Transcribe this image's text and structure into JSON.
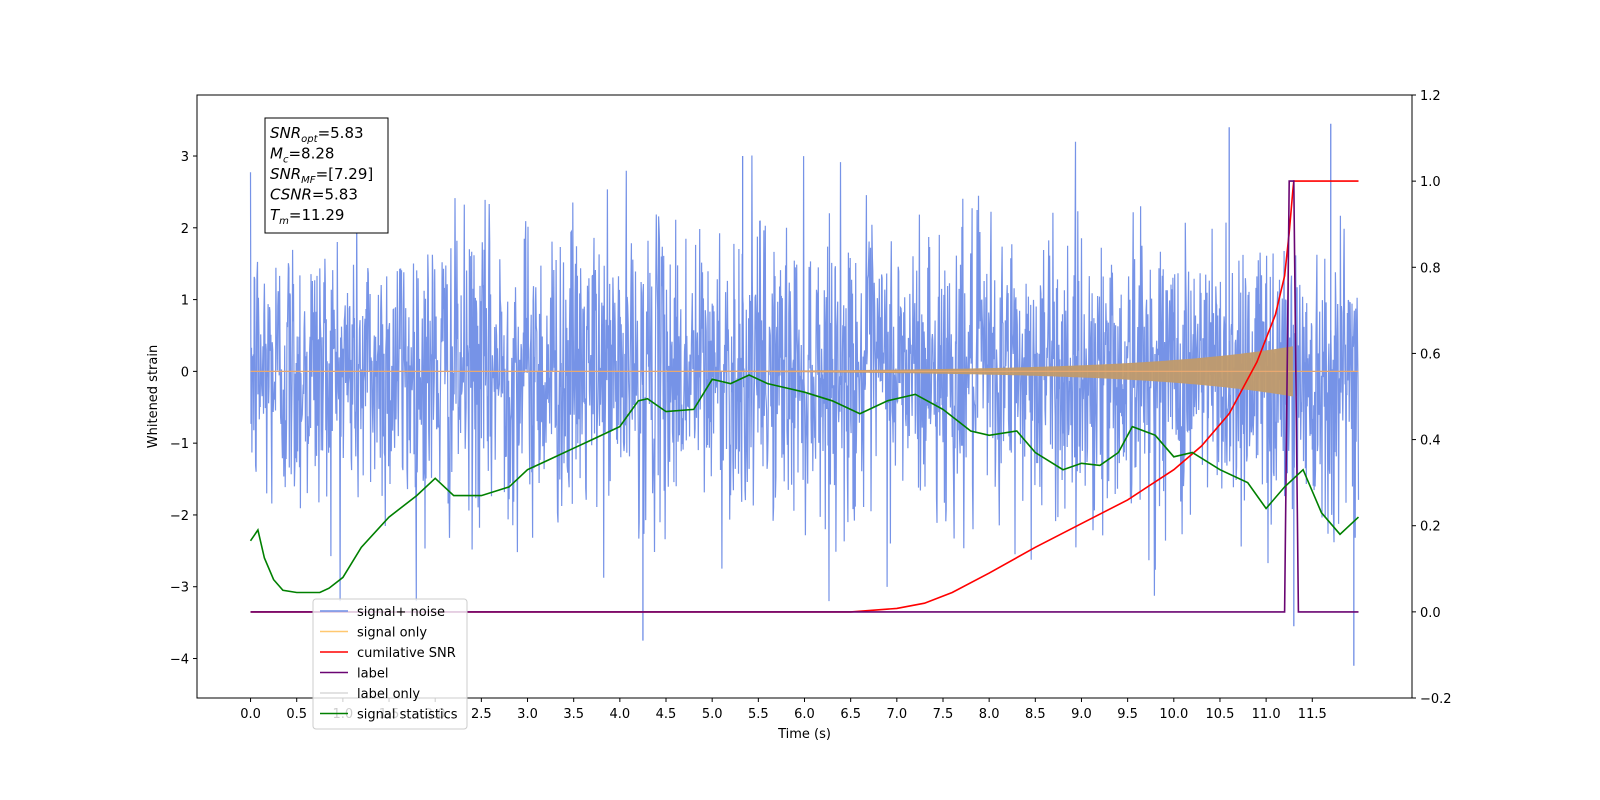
{
  "chart_data": {
    "type": "line",
    "title": "",
    "xlabel": "Time (s)",
    "ylabel": "Whitened strain",
    "xlim": [
      -0.58,
      12.58
    ],
    "ylim": [
      -4.55,
      3.85
    ],
    "y2lim": [
      -0.2,
      1.2
    ],
    "xticks": [
      "0.0",
      "0.5",
      "1.0",
      "1.5",
      "2.0",
      "2.5",
      "3.0",
      "3.5",
      "4.0",
      "4.5",
      "5.0",
      "5.5",
      "6.0",
      "6.5",
      "7.0",
      "7.5",
      "8.0",
      "8.5",
      "9.0",
      "9.5",
      "10.0",
      "10.5",
      "11.0",
      "11.5"
    ],
    "yticks": [
      "−4",
      "−3",
      "−2",
      "−1",
      "0",
      "1",
      "2",
      "3"
    ],
    "y2ticks": [
      "−0.2",
      "0.0",
      "0.2",
      "0.4",
      "0.6",
      "0.8",
      "1.0",
      "1.2"
    ],
    "grid": false,
    "legend_position": "lower-left",
    "series": [
      {
        "name": "signal+ noise",
        "axis": "left",
        "color": "#6f8de6",
        "style": "noise",
        "x_range": [
          0.0,
          12.0
        ],
        "amplitude_sigma": 1.0,
        "peaks": [
          [
            4.25,
            -3.75
          ],
          [
            11.7,
            3.45
          ],
          [
            11.95,
            -4.1
          ],
          [
            10.6,
            3.4
          ],
          [
            5.33,
            3.0
          ],
          [
            11.3,
            -3.55
          ]
        ]
      },
      {
        "name": "signal only",
        "axis": "left",
        "color": "#f5a623",
        "style": "chirp",
        "x_range": [
          0.0,
          12.0
        ],
        "merger_time": 11.29,
        "final_amplitude": 0.35
      },
      {
        "name": "cumilative SNR",
        "axis": "right",
        "x": [
          0.0,
          6.0,
          6.5,
          7.0,
          7.3,
          7.6,
          8.0,
          8.5,
          9.0,
          9.5,
          10.0,
          10.3,
          10.6,
          10.9,
          11.1,
          11.2,
          11.25,
          11.29,
          11.3,
          11.5,
          11.7,
          12.0
        ],
        "values": [
          0.0,
          0.0,
          0.0,
          0.008,
          0.02,
          0.045,
          0.09,
          0.15,
          0.205,
          0.26,
          0.33,
          0.385,
          0.46,
          0.58,
          0.69,
          0.78,
          0.88,
          0.98,
          1.0,
          1.0,
          1.0,
          1.0
        ],
        "color": "#ff0000"
      },
      {
        "name": "label",
        "axis": "right",
        "x": [
          0.0,
          11.2,
          11.25,
          11.3,
          11.35,
          12.0
        ],
        "values": [
          0.0,
          0.0,
          1.0,
          1.0,
          0.0,
          0.0
        ],
        "color": "#6a0572"
      },
      {
        "name": "label only",
        "axis": "right",
        "hidden": true,
        "color": "#cccccc"
      },
      {
        "name": "signal statistics",
        "axis": "right",
        "x": [
          0.0,
          0.08,
          0.15,
          0.25,
          0.35,
          0.5,
          0.75,
          0.85,
          1.0,
          1.2,
          1.5,
          1.8,
          2.0,
          2.2,
          2.5,
          2.8,
          3.0,
          3.2,
          3.5,
          3.7,
          4.0,
          4.2,
          4.3,
          4.5,
          4.8,
          5.0,
          5.2,
          5.4,
          5.6,
          5.8,
          6.0,
          6.3,
          6.6,
          6.9,
          7.2,
          7.5,
          7.8,
          8.0,
          8.3,
          8.5,
          8.8,
          9.0,
          9.2,
          9.4,
          9.55,
          9.8,
          10.0,
          10.2,
          10.5,
          10.8,
          11.0,
          11.2,
          11.4,
          11.6,
          11.8,
          12.0
        ],
        "values": [
          0.165,
          0.19,
          0.125,
          0.075,
          0.05,
          0.045,
          0.045,
          0.055,
          0.08,
          0.15,
          0.22,
          0.27,
          0.31,
          0.27,
          0.27,
          0.29,
          0.33,
          0.35,
          0.38,
          0.4,
          0.43,
          0.49,
          0.495,
          0.465,
          0.47,
          0.54,
          0.53,
          0.55,
          0.53,
          0.52,
          0.51,
          0.49,
          0.46,
          0.49,
          0.505,
          0.47,
          0.42,
          0.41,
          0.42,
          0.37,
          0.33,
          0.345,
          0.34,
          0.37,
          0.43,
          0.41,
          0.36,
          0.37,
          0.33,
          0.3,
          0.24,
          0.29,
          0.33,
          0.23,
          0.18,
          0.22
        ],
        "color": "#008000"
      }
    ]
  },
  "info_box": {
    "lines": [
      {
        "symbol": "SNR",
        "sub": "opt",
        "value": "=5.83"
      },
      {
        "symbol": "M",
        "sub": "c",
        "value": "=8.28"
      },
      {
        "symbol": "SNR",
        "sub": "MF",
        "value": "=[7.29]"
      },
      {
        "symbol": "CSNR",
        "sub": "",
        "value": "=5.83"
      },
      {
        "symbol": "T",
        "sub": "m",
        "value": "=11.29"
      }
    ]
  },
  "legend": {
    "entries": [
      {
        "label": "signal+ noise",
        "color": "#6f8de6",
        "faded": false
      },
      {
        "label": "signal only",
        "color": "#ffc870",
        "faded": false
      },
      {
        "label": "cumilative SNR",
        "color": "#ff0000",
        "faded": false
      },
      {
        "label": "label",
        "color": "#6a0572",
        "faded": false
      },
      {
        "label": "label only",
        "color": "#d8d8d8",
        "faded": true
      },
      {
        "label": "signal statistics",
        "color": "#008000",
        "faded": false
      }
    ]
  }
}
